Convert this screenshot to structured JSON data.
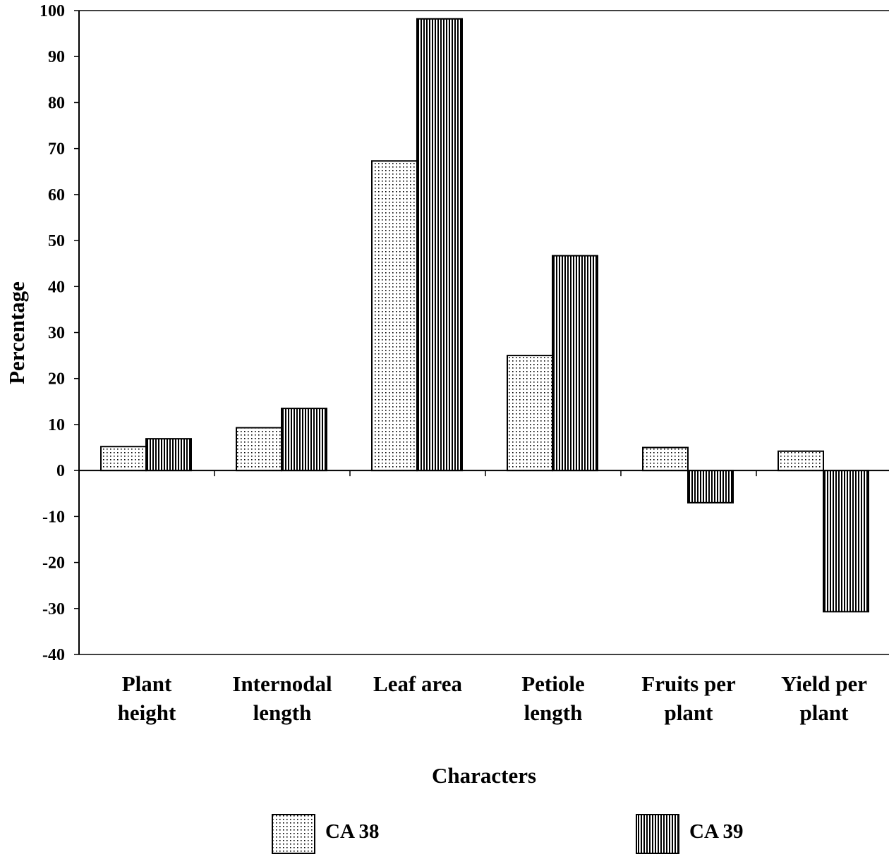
{
  "chart_data": {
    "type": "bar",
    "title": "",
    "xlabel": "Characters",
    "ylabel": "Percentage",
    "ylim": [
      -40,
      100
    ],
    "yticks": [
      100,
      90,
      80,
      70,
      60,
      50,
      40,
      30,
      20,
      10,
      0,
      -10,
      -20,
      -30,
      -40
    ],
    "categories": [
      [
        "Plant",
        "height"
      ],
      [
        "Internodal",
        "length"
      ],
      [
        "Leaf area"
      ],
      [
        "Petiole",
        "length"
      ],
      [
        "Fruits per",
        "plant"
      ],
      [
        "Yield per",
        "plant"
      ]
    ],
    "series": [
      {
        "name": "CA 38",
        "pattern": "dots",
        "values": [
          5.2,
          9.3,
          67.3,
          25.0,
          5.0,
          4.2
        ]
      },
      {
        "name": "CA 39",
        "pattern": "vertical-lines",
        "values": [
          6.9,
          13.5,
          98.2,
          46.7,
          -7.0,
          -30.7
        ]
      }
    ],
    "grid": false,
    "legend_position": "bottom",
    "colors": {
      "ink": "#000000",
      "background": "#ffffff"
    }
  }
}
